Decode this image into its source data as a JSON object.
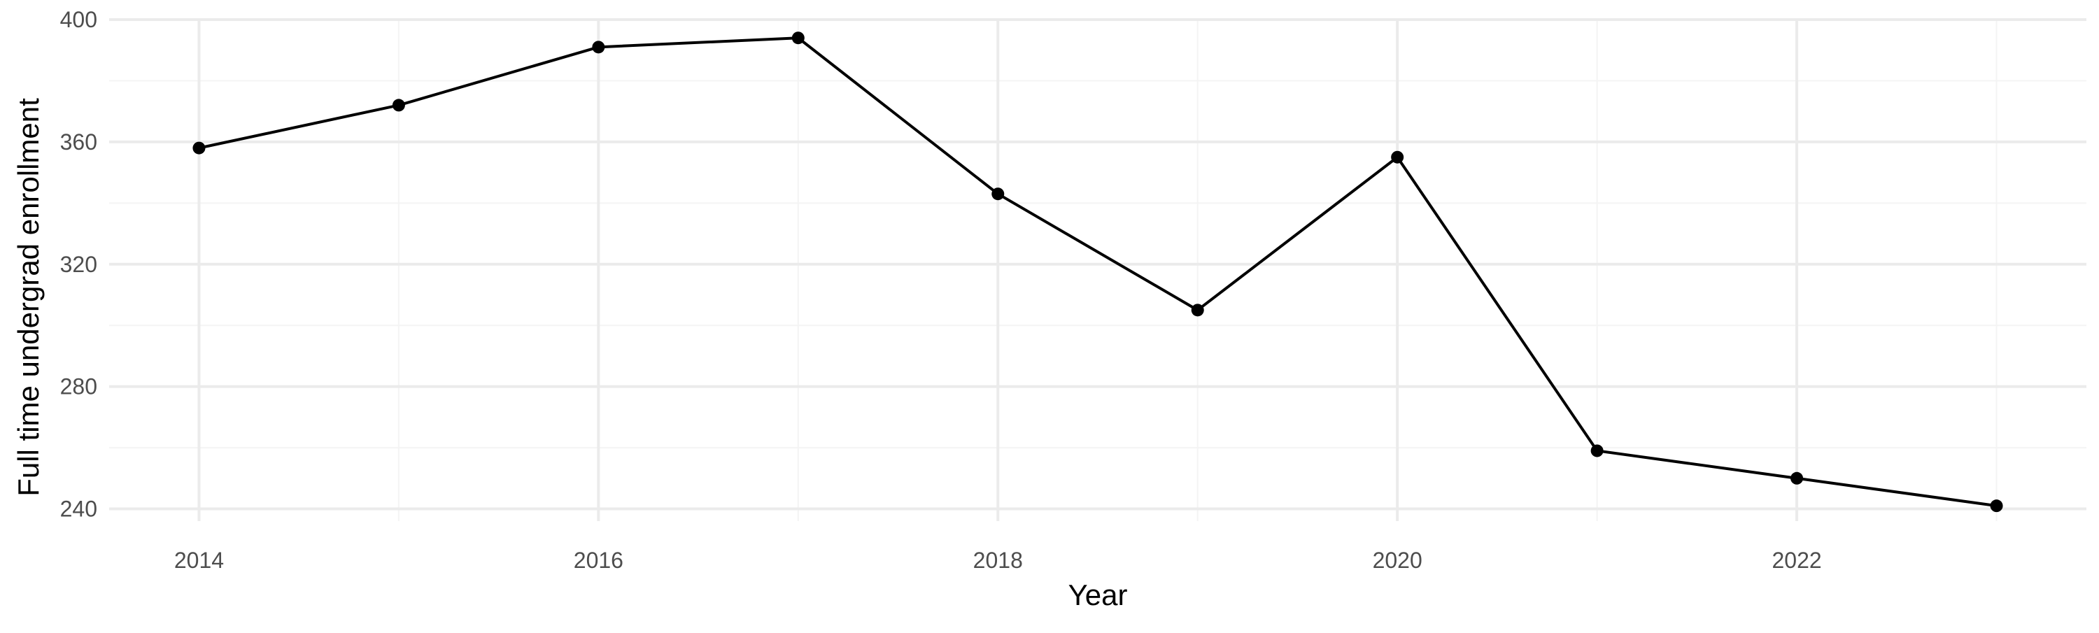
{
  "chart_data": {
    "type": "line",
    "title": "",
    "xlabel": "Year",
    "ylabel": "Full time undergrad enrollment",
    "x": [
      2014,
      2015,
      2016,
      2017,
      2018,
      2019,
      2020,
      2021,
      2022,
      2023
    ],
    "series": [
      {
        "values": [
          358,
          372,
          391,
          394,
          343,
          305,
          355,
          259,
          250,
          241
        ]
      }
    ],
    "xlim": [
      2013.55,
      2023.45
    ],
    "ylim": [
      236,
      400
    ],
    "x_ticks": [
      2014,
      2016,
      2018,
      2020,
      2022
    ],
    "x_tick_labels": [
      "2014",
      "2016",
      "2018",
      "2020",
      "2022"
    ],
    "y_ticks": [
      240,
      280,
      320,
      360,
      400
    ],
    "y_tick_labels": [
      "240",
      "280",
      "320",
      "360",
      "400"
    ],
    "grid": true,
    "legend": "none",
    "colors": {
      "line": "#000000",
      "point": "#000000",
      "grid_major": "#ebebeb",
      "grid_minor": "#f4f4f4",
      "tick_text": "#4d4d4d",
      "background": "#ffffff"
    }
  }
}
